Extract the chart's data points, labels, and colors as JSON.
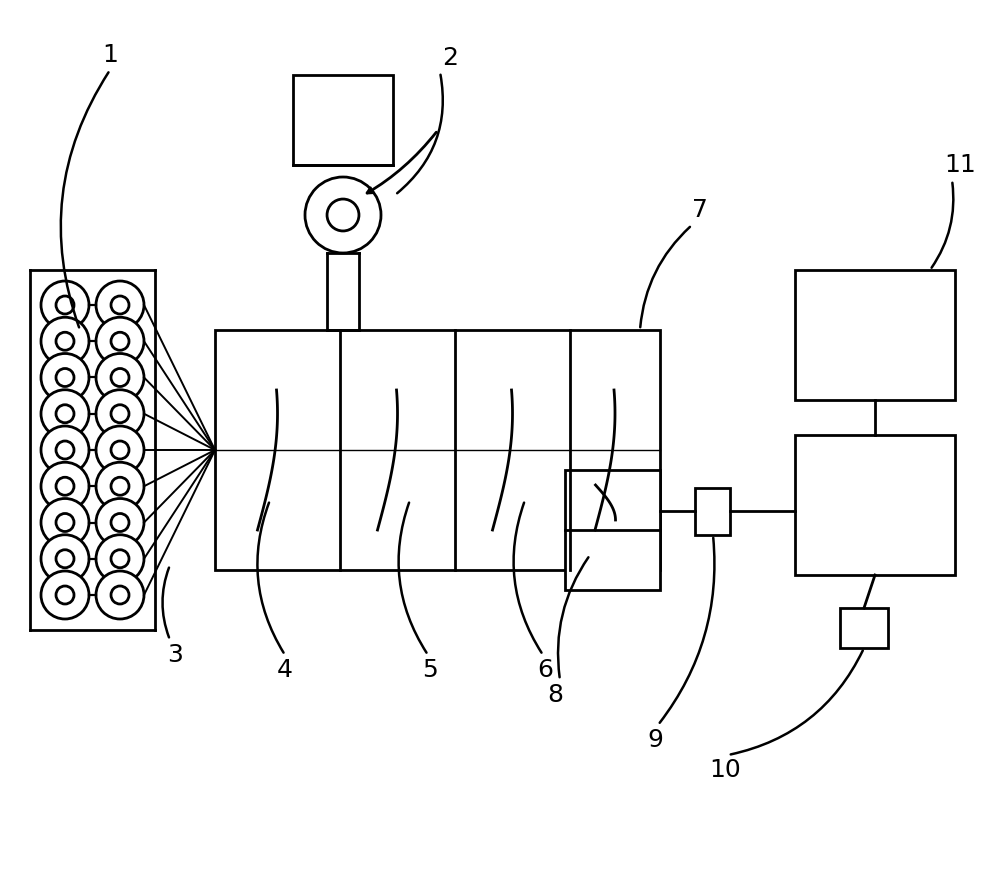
{
  "bg_color": "#ffffff",
  "line_color": "#000000",
  "lw": 2.0,
  "fig_width": 10.0,
  "fig_height": 8.72
}
